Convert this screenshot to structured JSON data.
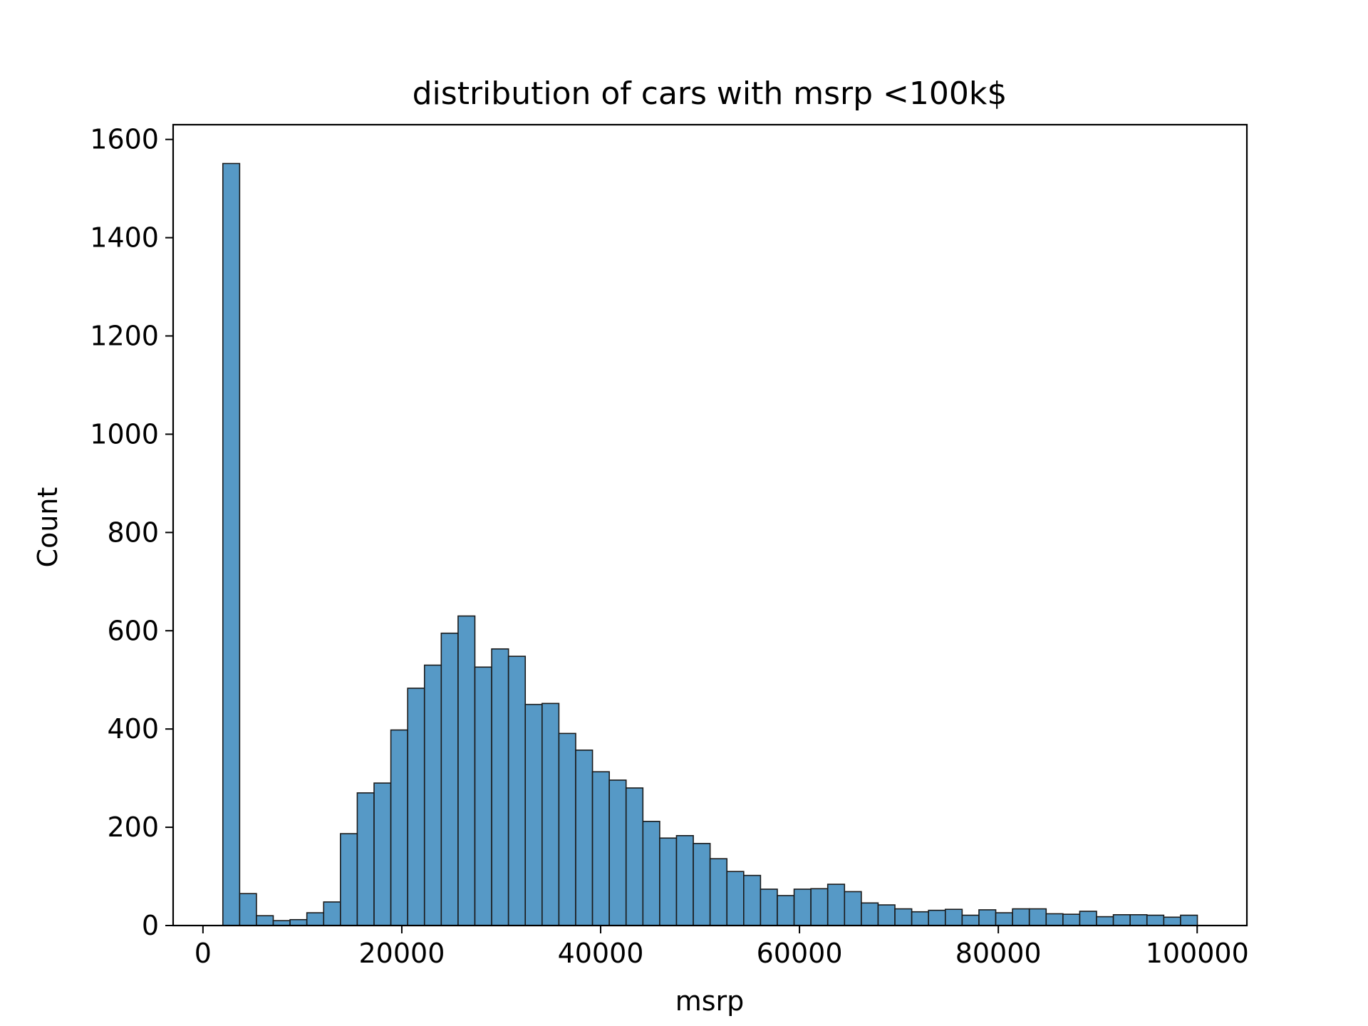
{
  "chart_data": {
    "type": "bar",
    "title": "distribution of cars with msrp <100k$",
    "xlabel": "msrp",
    "ylabel": "Count",
    "xlim": [
      -3000,
      105000
    ],
    "ylim": [
      0,
      1630
    ],
    "bin_start": 2000,
    "bin_width": 1690,
    "x_ticks": [
      0,
      20000,
      40000,
      60000,
      80000,
      100000
    ],
    "y_ticks": [
      0,
      200,
      400,
      600,
      800,
      1000,
      1200,
      1400,
      1600
    ],
    "values": [
      1551,
      65,
      20,
      10,
      12,
      26,
      48,
      187,
      270,
      290,
      398,
      483,
      530,
      595,
      630,
      526,
      563,
      548,
      450,
      452,
      391,
      357,
      313,
      296,
      280,
      212,
      178,
      183,
      167,
      136,
      110,
      102,
      74,
      61,
      74,
      75,
      84,
      69,
      46,
      42,
      34,
      28,
      31,
      33,
      21,
      32,
      26,
      34,
      34,
      24,
      23,
      29,
      18,
      22,
      22,
      21,
      17,
      21
    ],
    "grid": false,
    "colors": {
      "bar_fill": "#5699C6",
      "bar_edge": "#1a1a1a",
      "axis": "#000000"
    }
  }
}
